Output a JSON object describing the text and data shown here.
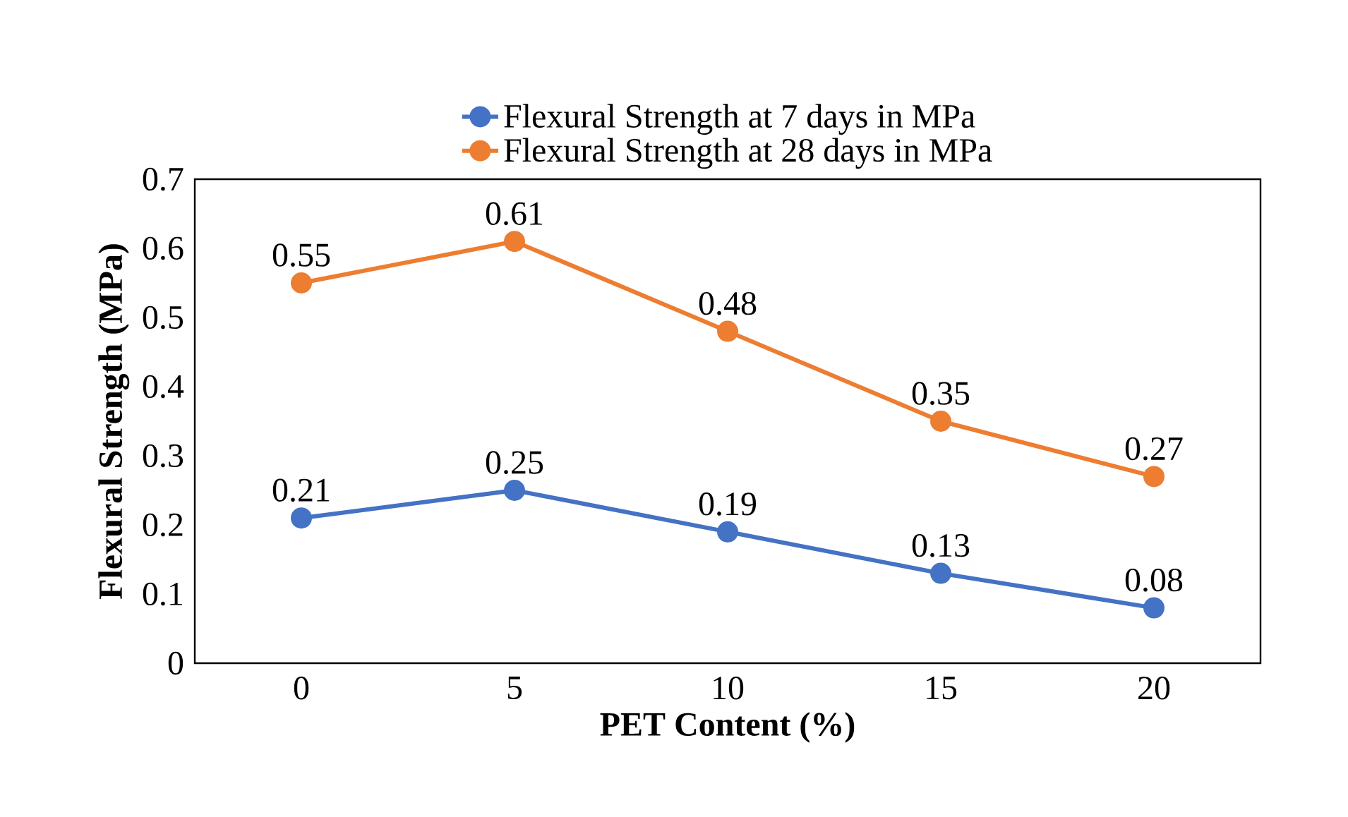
{
  "chart_data": {
    "type": "line",
    "xlabel": "PET Content (%)",
    "ylabel": "Flexural Strength (MPa)",
    "categories": [
      "0",
      "5",
      "10",
      "15",
      "20"
    ],
    "series": [
      {
        "name": "Flexural Strength at 7 days in MPa",
        "color": "#4472c4",
        "values": [
          0.21,
          0.25,
          0.19,
          0.13,
          0.08
        ]
      },
      {
        "name": "Flexural Strength at 28 days in MPa",
        "color": "#ed7d31",
        "values": [
          0.55,
          0.61,
          0.48,
          0.35,
          0.27
        ]
      }
    ],
    "ylim": [
      0,
      0.7
    ],
    "yticks": [
      0,
      0.1,
      0.2,
      0.3,
      0.4,
      0.5,
      0.6,
      0.7
    ],
    "legend": "top",
    "marker": "circle",
    "line_style": "solid",
    "data_labels": true
  }
}
